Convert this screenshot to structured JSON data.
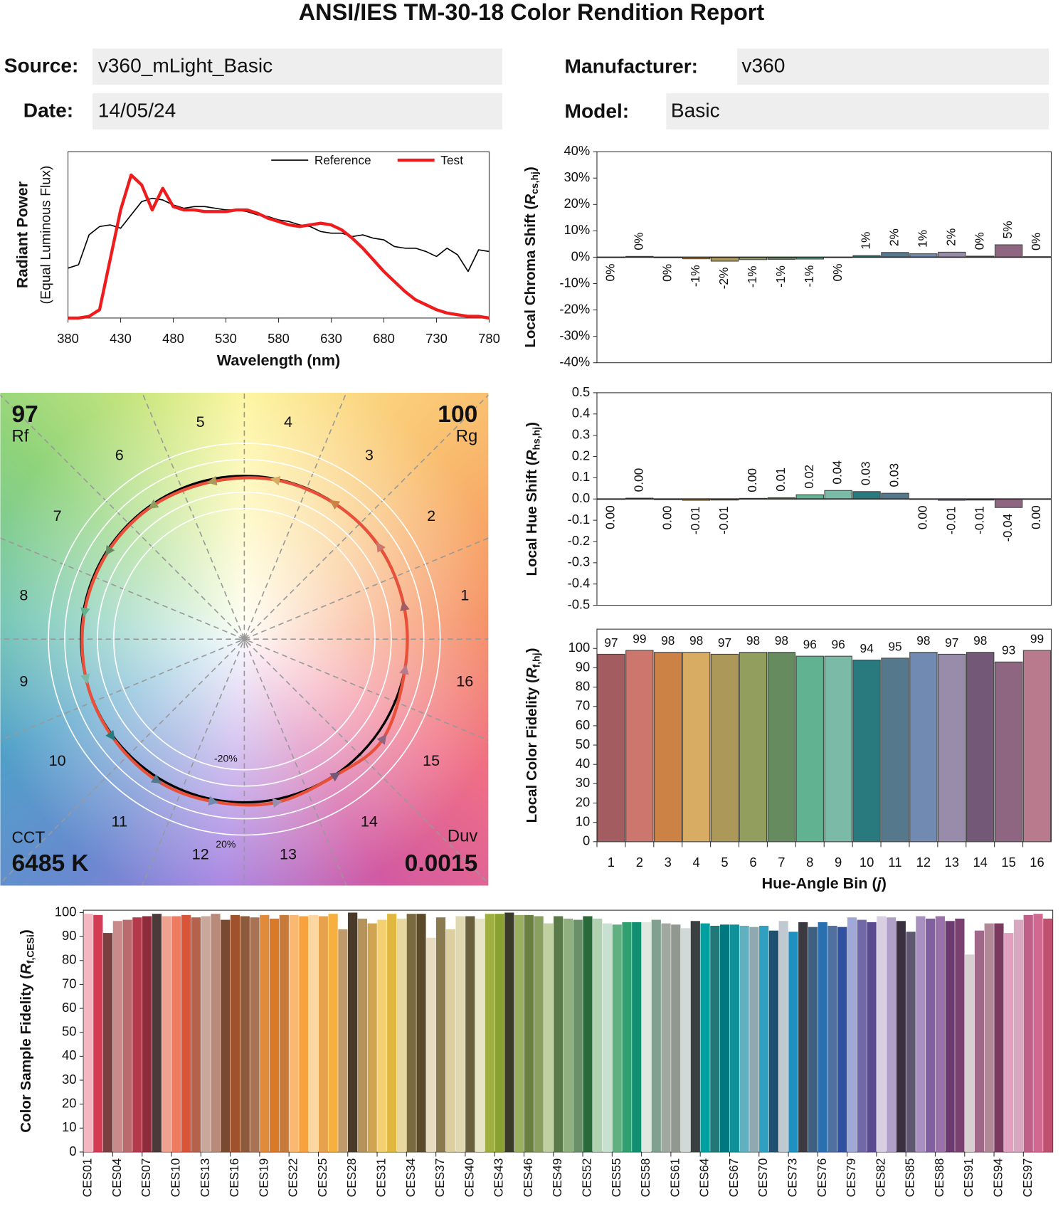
{
  "header": {
    "title": "ANSI/IES TM-30-18 Color Rendition Report",
    "fields": [
      {
        "label": "Source:",
        "value": "v360_mLight_Basic"
      },
      {
        "label": "Date:",
        "value": "14/05/24"
      },
      {
        "label": "Manufacturer:",
        "value": "v360"
      },
      {
        "label": "Model:",
        "value": "Basic"
      }
    ]
  },
  "chart_data": [
    {
      "type": "line",
      "xlabel": "Wavelength (nm)",
      "ylabel": [
        "Radiant Power",
        "(Equal Luminous Flux)"
      ],
      "x": [
        380,
        390,
        400,
        410,
        420,
        430,
        440,
        450,
        460,
        470,
        480,
        490,
        500,
        510,
        520,
        530,
        540,
        550,
        560,
        570,
        580,
        590,
        600,
        610,
        620,
        630,
        640,
        650,
        660,
        670,
        680,
        690,
        700,
        710,
        720,
        730,
        740,
        750,
        760,
        770,
        780
      ],
      "xlim": [
        380,
        780
      ],
      "xticks": [
        380,
        430,
        480,
        530,
        580,
        630,
        680,
        730,
        780
      ],
      "ylim": [
        0,
        1
      ],
      "series": [
        {
          "name": "Reference",
          "color": "#000000",
          "values": [
            0.3,
            0.32,
            0.5,
            0.55,
            0.56,
            0.54,
            0.62,
            0.7,
            0.72,
            0.71,
            0.68,
            0.66,
            0.67,
            0.67,
            0.66,
            0.65,
            0.65,
            0.64,
            0.62,
            0.61,
            0.59,
            0.58,
            0.56,
            0.55,
            0.52,
            0.51,
            0.51,
            0.49,
            0.5,
            0.48,
            0.47,
            0.43,
            0.42,
            0.42,
            0.4,
            0.37,
            0.42,
            0.38,
            0.28,
            0.41,
            0.4
          ]
        },
        {
          "name": "Test",
          "color": "#ee1c1c",
          "values": [
            0,
            0,
            0.01,
            0.05,
            0.35,
            0.65,
            0.86,
            0.8,
            0.65,
            0.78,
            0.67,
            0.65,
            0.65,
            0.64,
            0.64,
            0.64,
            0.65,
            0.65,
            0.63,
            0.6,
            0.58,
            0.56,
            0.55,
            0.56,
            0.57,
            0.56,
            0.53,
            0.48,
            0.42,
            0.35,
            0.28,
            0.22,
            0.16,
            0.11,
            0.08,
            0.05,
            0.03,
            0.02,
            0.01,
            0.01,
            0
          ]
        }
      ],
      "legend": "top-right"
    },
    {
      "type": "bar",
      "ylabel": [
        "Local Chroma Shift (",
        "R",
        "cs,hj",
        ")"
      ],
      "values": [
        -0.1,
        0.3,
        -0.2,
        -0.6,
        -1.5,
        -0.9,
        -0.8,
        -0.7,
        -0.1,
        0.6,
        1.8,
        1.3,
        1.9,
        0.4,
        4.7,
        0.2
      ],
      "value_labels": [
        "0%",
        "0%",
        "0%",
        "-1%",
        "-2%",
        "-1%",
        "-1%",
        "-1%",
        "0%",
        "1%",
        "2%",
        "1%",
        "2%",
        "0%",
        "5%",
        "0%"
      ],
      "data_labels": true,
      "ylim": [
        -40,
        40
      ],
      "yticks": [
        {
          "value": 40,
          "label": "40%"
        },
        {
          "value": 30,
          "label": "30%"
        },
        {
          "value": 20,
          "label": "20%"
        },
        {
          "value": 10,
          "label": "10%"
        },
        {
          "value": 0,
          "label": "0%"
        },
        {
          "value": -10,
          "label": "-10%"
        },
        {
          "value": -20,
          "label": "-20%"
        },
        {
          "value": -30,
          "label": "-30%"
        },
        {
          "value": -40,
          "label": "-40%"
        }
      ],
      "colors": [
        "#a35c60",
        "#cc766e",
        "#cc8145",
        "#d8ac62",
        "#ac9959",
        "#919e5d",
        "#668b5e",
        "#61b290",
        "#7bbaa6",
        "#297a7e",
        "#55788d",
        "#708ab2",
        "#988caa",
        "#735877",
        "#8f6682",
        "#ba7a8e"
      ]
    },
    {
      "type": "bar",
      "ylabel": [
        "Local Hue Shift (",
        "R",
        "hs,hj",
        ")"
      ],
      "values": [
        -0.001,
        0.004,
        -0.003,
        -0.006,
        -0.005,
        0.003,
        0.006,
        0.02,
        0.04,
        0.035,
        0.027,
        -0.002,
        -0.006,
        -0.005,
        -0.04,
        -0.001
      ],
      "value_labels": [
        "0.00",
        "0.00",
        "0.00",
        "-0.01",
        "-0.01",
        "0.00",
        "0.01",
        "0.02",
        "0.04",
        "0.03",
        "0.03",
        "0.00",
        "-0.01",
        "-0.01",
        "-0.04",
        "0.00"
      ],
      "data_labels": true,
      "ylim": [
        -0.5,
        0.5
      ],
      "yticks": [
        0.5,
        0.4,
        0.3,
        0.2,
        0.1,
        {
          "value": 0,
          "label": "0.0"
        },
        -0.1,
        -0.2,
        -0.3,
        -0.4,
        -0.5
      ],
      "colors": [
        "#a35c60",
        "#cc766e",
        "#cc8145",
        "#d8ac62",
        "#ac9959",
        "#919e5d",
        "#668b5e",
        "#61b290",
        "#7bbaa6",
        "#297a7e",
        "#55788d",
        "#708ab2",
        "#988caa",
        "#735877",
        "#8f6682",
        "#ba7a8e"
      ]
    },
    {
      "type": "bar",
      "ylabel": [
        "Local Color Fidelity (",
        "R",
        "f,hj",
        ")"
      ],
      "xlabel": [
        "Hue-Angle Bin (",
        "j",
        ")"
      ],
      "categories": [
        "1",
        "2",
        "3",
        "4",
        "5",
        "6",
        "7",
        "8",
        "9",
        "10",
        "11",
        "12",
        "13",
        "14",
        "15",
        "16"
      ],
      "values": [
        97,
        99,
        98,
        98,
        97,
        98,
        98,
        96,
        96,
        94,
        95,
        98,
        97,
        98,
        93,
        99
      ],
      "data_labels": true,
      "ylim": [
        0,
        110
      ],
      "yticks": [
        0,
        10,
        20,
        30,
        40,
        50,
        60,
        70,
        80,
        90,
        100
      ],
      "colors": [
        "#a35c60",
        "#cc766e",
        "#cc8145",
        "#d8ac62",
        "#ac9959",
        "#919e5d",
        "#668b5e",
        "#61b290",
        "#7bbaa6",
        "#297a7e",
        "#55788d",
        "#708ab2",
        "#988caa",
        "#735877",
        "#8f6682",
        "#ba7a8e"
      ]
    },
    {
      "type": "vector",
      "rf": 97,
      "rf_label": [
        "R",
        "f"
      ],
      "rg": 100,
      "rg_label": [
        "R",
        "g"
      ],
      "cct_label": "CCT",
      "cct": "6485 K",
      "duv_label": [
        "D",
        "uv"
      ],
      "duv": 0.0015,
      "bins": [
        "1",
        "2",
        "3",
        "4",
        "5",
        "6",
        "7",
        "8",
        "9",
        "10",
        "11",
        "12",
        "13",
        "14",
        "15",
        "16"
      ],
      "ring_labels": [
        "-20%",
        "20%"
      ],
      "test_color": "#e8503a",
      "reference_color": "#000000"
    },
    {
      "type": "bar",
      "ylabel": [
        "Color Sample Fidelity (",
        "R",
        "f,CESi",
        ")"
      ],
      "categories": [
        "CES01",
        null,
        null,
        "CES04",
        null,
        null,
        "CES07",
        null,
        null,
        "CES10",
        null,
        null,
        "CES13",
        null,
        null,
        "CES16",
        null,
        null,
        "CES19",
        null,
        null,
        "CES22",
        null,
        null,
        "CES25",
        null,
        null,
        "CES28",
        null,
        null,
        "CES31",
        null,
        null,
        "CES34",
        null,
        null,
        "CES37",
        null,
        null,
        "CES40",
        null,
        null,
        "CES43",
        null,
        null,
        "CES46",
        null,
        null,
        "CES49",
        null,
        null,
        "CES52",
        null,
        null,
        "CES55",
        null,
        null,
        "CES58",
        null,
        null,
        "CES61",
        null,
        null,
        "CES64",
        null,
        null,
        "CES67",
        null,
        null,
        "CES70",
        null,
        null,
        "CES73",
        null,
        null,
        "CES76",
        null,
        null,
        "CES79",
        null,
        null,
        "CES82",
        null,
        null,
        "CES85",
        null,
        null,
        "CES88",
        null,
        null,
        "CES91",
        null,
        null,
        "CES94",
        null,
        null,
        "CES97",
        null,
        null
      ],
      "values": [
        99.5,
        99,
        91.5,
        96.5,
        97,
        98,
        98.5,
        99.5,
        98.5,
        98.5,
        99,
        98,
        98.5,
        99.5,
        97,
        99,
        98.5,
        98,
        99,
        97.5,
        99,
        99,
        98.5,
        99,
        98.5,
        99.5,
        93,
        100,
        97.5,
        95.5,
        97,
        99.5,
        97.5,
        99.5,
        99.5,
        89.5,
        98,
        93,
        98.5,
        98.5,
        97.5,
        99.5,
        99.5,
        100,
        99,
        99,
        98.5,
        95.5,
        98.5,
        97.5,
        97,
        98.5,
        97.5,
        95.5,
        95,
        96,
        96,
        96,
        97,
        95.5,
        95,
        93.5,
        96.5,
        95.5,
        94.5,
        95,
        95,
        94.5,
        94,
        94.5,
        92.5,
        96.5,
        92,
        96,
        94,
        96,
        94.5,
        94,
        98,
        97,
        96,
        98.5,
        98,
        96.5,
        92,
        98.5,
        97.5,
        98.5,
        96.5,
        97.5,
        82.5,
        92.5,
        95.5,
        95.5,
        91.5,
        97,
        99,
        99.5,
        97.5
      ],
      "ylim": [
        0,
        101
      ],
      "yticks": [
        0,
        10,
        20,
        30,
        40,
        50,
        60,
        70,
        80,
        90,
        100
      ],
      "colors": [
        "#f4b6c0",
        "#d43b55",
        "#7a3f40",
        "#c88a8b",
        "#b86c6c",
        "#b23a4a",
        "#8e2c3c",
        "#4a3a3a",
        "#f0a290",
        "#ee7b60",
        "#d8553a",
        "#b5624c",
        "#c9a79a",
        "#b88a7a",
        "#7a4a30",
        "#a0522d",
        "#8e5a3c",
        "#a87355",
        "#e08a3c",
        "#d97a2a",
        "#c87a3a",
        "#fbb870",
        "#f7a23c",
        "#fcd7a2",
        "#e8a24c",
        "#f6b040",
        "#c09a6a",
        "#4a3a2a",
        "#b5935a",
        "#d0a450",
        "#f4d070",
        "#e0b840",
        "#e8d8a0",
        "#7a6a40",
        "#5a4a2a",
        "#e8dcc0",
        "#8a7a50",
        "#dcd0a0",
        "#e0d8b0",
        "#6a6040",
        "#e8e4c8",
        "#a0b040",
        "#8aa030",
        "#3a3a2a",
        "#9ab060",
        "#6a8040",
        "#8aa060",
        "#c0d0a0",
        "#5a7a4a",
        "#90b080",
        "#6a906a",
        "#2a6a3a",
        "#b0d0b0",
        "#c8e0d0",
        "#60b080",
        "#30a070",
        "#109070",
        "#e0e8e0",
        "#80a090",
        "#a0a8a0",
        "#909890",
        "#d0d8d8",
        "#3a4040",
        "#00a0a0",
        "#207878",
        "#007880",
        "#109098",
        "#60b0c0",
        "#90a8b0",
        "#30a0c0",
        "#205070",
        "#c0c8d0",
        "#2090c0",
        "#3a3a40",
        "#406080",
        "#2a70b0",
        "#5070a0",
        "#3050a0",
        "#a0a8d8",
        "#7068a8",
        "#5a4a90",
        "#d8d0e0",
        "#b0a0c8",
        "#3a3040",
        "#605870",
        "#a890c0",
        "#8060a0",
        "#9a70a8",
        "#6a3a70",
        "#7a4070",
        "#d8d0d0",
        "#a06888",
        "#b08898",
        "#7a3a60",
        "#e0a0c0",
        "#d8a8c0",
        "#c06088",
        "#d06890",
        "#c05070"
      ]
    }
  ]
}
